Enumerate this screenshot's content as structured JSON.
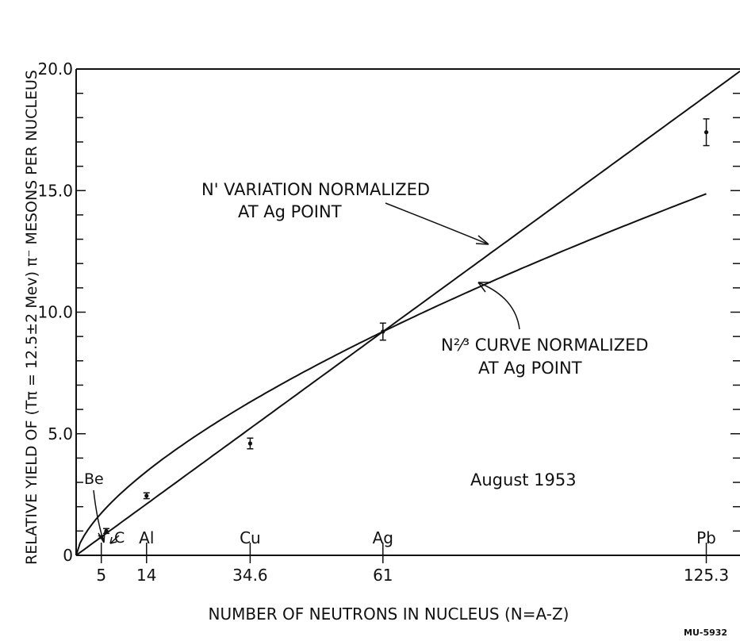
{
  "chart_data": {
    "type": "scatter",
    "title": "",
    "xlabel": "NUMBER OF NEUTRONS IN NUCLEUS (N=A-Z)",
    "ylabel": "RELATIVE YIELD OF (Tπ = 12.5±2 Mev) π⁻ MESONS PER NUCLEUS",
    "xlim": [
      0,
      132
    ],
    "ylim": [
      0,
      20
    ],
    "y_ticks": [
      {
        "value": 0,
        "label": "0"
      },
      {
        "value": 5,
        "label": "5.0"
      },
      {
        "value": 10,
        "label": "10.0"
      },
      {
        "value": 15,
        "label": "15.0"
      },
      {
        "value": 20,
        "label": "20.0"
      }
    ],
    "x_ticks": [
      {
        "value": 5,
        "label": "5"
      },
      {
        "value": 14,
        "label": "14"
      },
      {
        "value": 34.6,
        "label": "34.6"
      },
      {
        "value": 61,
        "label": "61"
      },
      {
        "value": 125.3,
        "label": "125.3"
      }
    ],
    "element_labels": [
      {
        "x": 14,
        "label": "Al"
      },
      {
        "x": 34.6,
        "label": "Cu"
      },
      {
        "x": 61,
        "label": "Ag"
      },
      {
        "x": 125.3,
        "label": "Pb"
      }
    ],
    "points": [
      {
        "element": "Be",
        "x": 5,
        "y": 0.75,
        "err": 0.05
      },
      {
        "element": "C",
        "x": 6,
        "y": 1.0,
        "err": 0.1
      },
      {
        "element": "Al",
        "x": 14,
        "y": 2.45,
        "err": 0.12
      },
      {
        "element": "Cu",
        "x": 34.6,
        "y": 4.6,
        "err": 0.22
      },
      {
        "element": "Ag",
        "x": 61,
        "y": 9.2,
        "err": 0.35
      },
      {
        "element": "Pb",
        "x": 125.3,
        "y": 17.4,
        "err": 0.55
      }
    ],
    "series": [
      {
        "name": "N¹ variation",
        "kind": "line",
        "exponent": 1,
        "norm_x": 61,
        "norm_y": 9.2,
        "x_range": [
          0,
          132
        ]
      },
      {
        "name": "N²ᐟ³ curve",
        "kind": "line",
        "exponent": 0.6667,
        "norm_x": 61,
        "norm_y": 9.2,
        "x_range": [
          0,
          125.3
        ]
      }
    ],
    "annotations": {
      "n1_line1": "N' VARIATION NORMALIZED",
      "n1_line2": "AT Ag POINT",
      "n23_line1": "N²⁄³ CURVE NORMALIZED",
      "n23_line2": "AT Ag POINT",
      "be_label": "Be",
      "c_label": "C",
      "date": "August 1953",
      "code": "MU-5932"
    },
    "grid": false
  }
}
